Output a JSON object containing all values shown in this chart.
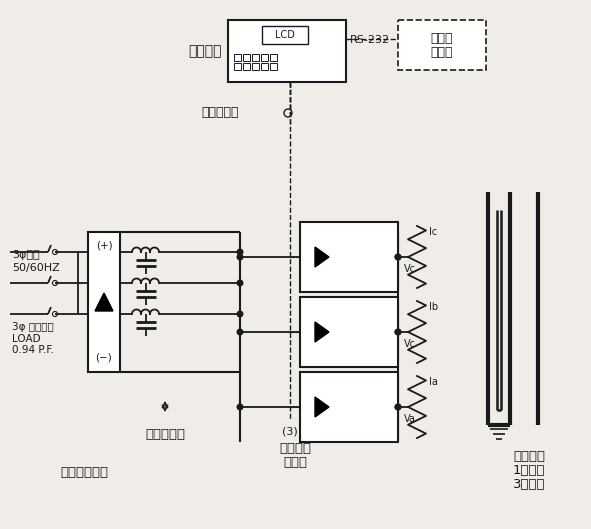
{
  "bg_color": "#f0ede8",
  "line_color": "#1a1a1a",
  "labels": {
    "microprocessor": "微处理器",
    "lcd": "LCD",
    "rs232": "RS-232",
    "computer_line1": "电脑，",
    "computer_line2": "打印机",
    "control_feedback": "控制，反馈",
    "filter": "滤波电抗器",
    "inverter_line1": "逻变器，",
    "inverter_line2": "电容器",
    "diode": "二极管整流桥",
    "furnace_line1": "无芯炉子",
    "furnace_line2": "1相溶炼",
    "furnace_line3": "3相搅拌",
    "supply_line1": "3φ供电",
    "supply_line2": "50/60HZ",
    "load_line1": "3φ 负载均衡",
    "load_line2": "LOAD",
    "load_line3": "0.94 P.F.",
    "three_label": "(3)",
    "ic": "Ic",
    "ib": "Ib",
    "ia": "Ia",
    "vc": "Vc",
    "va": "Va"
  },
  "colors": {
    "main_line": "#1a1a1a",
    "box_fill": "#ffffff",
    "bg": "#f0ede8"
  }
}
